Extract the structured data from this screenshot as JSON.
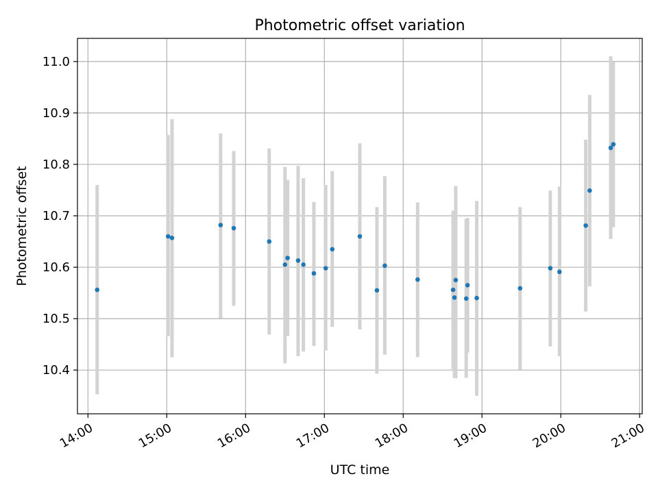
{
  "chart_data": {
    "type": "scatter",
    "title": "Photometric offset variation",
    "xlabel": "UTC time",
    "ylabel": "Photometric offset",
    "grid": true,
    "xlim": [
      "13:52",
      "21:02"
    ],
    "ylim": [
      10.315,
      11.045
    ],
    "x_ticks": [
      "14:00",
      "15:00",
      "16:00",
      "17:00",
      "18:00",
      "19:00",
      "20:00",
      "21:00"
    ],
    "y_ticks": [
      "10.4",
      "10.5",
      "10.6",
      "10.7",
      "10.8",
      "10.9",
      "11.0"
    ],
    "colors": {
      "point": "#1f77b4",
      "errorbar": "#d3d3d3",
      "grid": "#b0b0b0"
    },
    "points": [
      {
        "t": "14:07",
        "y": 10.556,
        "lo": 10.353,
        "hi": 10.76
      },
      {
        "t": "15:01",
        "y": 10.66,
        "lo": 10.466,
        "hi": 10.857
      },
      {
        "t": "15:04",
        "y": 10.657,
        "lo": 10.425,
        "hi": 10.888
      },
      {
        "t": "15:41",
        "y": 10.682,
        "lo": 10.501,
        "hi": 10.86
      },
      {
        "t": "15:51",
        "y": 10.676,
        "lo": 10.525,
        "hi": 10.826
      },
      {
        "t": "16:18",
        "y": 10.65,
        "lo": 10.469,
        "hi": 10.831
      },
      {
        "t": "16:30",
        "y": 10.605,
        "lo": 10.413,
        "hi": 10.795
      },
      {
        "t": "16:32",
        "y": 10.618,
        "lo": 10.466,
        "hi": 10.77
      },
      {
        "t": "16:40",
        "y": 10.613,
        "lo": 10.427,
        "hi": 10.797
      },
      {
        "t": "16:44",
        "y": 10.605,
        "lo": 10.436,
        "hi": 10.773
      },
      {
        "t": "16:52",
        "y": 10.588,
        "lo": 10.447,
        "hi": 10.727
      },
      {
        "t": "17:01",
        "y": 10.598,
        "lo": 10.438,
        "hi": 10.76
      },
      {
        "t": "17:06",
        "y": 10.635,
        "lo": 10.484,
        "hi": 10.787
      },
      {
        "t": "17:27",
        "y": 10.66,
        "lo": 10.479,
        "hi": 10.841
      },
      {
        "t": "17:40",
        "y": 10.555,
        "lo": 10.393,
        "hi": 10.717
      },
      {
        "t": "17:46",
        "y": 10.603,
        "lo": 10.43,
        "hi": 10.777
      },
      {
        "t": "18:11",
        "y": 10.576,
        "lo": 10.425,
        "hi": 10.726
      },
      {
        "t": "18:38",
        "y": 10.556,
        "lo": 10.402,
        "hi": 10.71
      },
      {
        "t": "18:39",
        "y": 10.541,
        "lo": 10.385,
        "hi": 10.698
      },
      {
        "t": "18:40",
        "y": 10.575,
        "lo": 10.384,
        "hi": 10.758
      },
      {
        "t": "18:48",
        "y": 10.539,
        "lo": 10.385,
        "hi": 10.694
      },
      {
        "t": "18:49",
        "y": 10.565,
        "lo": 10.434,
        "hi": 10.696
      },
      {
        "t": "18:56",
        "y": 10.54,
        "lo": 10.35,
        "hi": 10.729
      },
      {
        "t": "19:29",
        "y": 10.559,
        "lo": 10.401,
        "hi": 10.717
      },
      {
        "t": "19:52",
        "y": 10.598,
        "lo": 10.446,
        "hi": 10.749
      },
      {
        "t": "19:59",
        "y": 10.591,
        "lo": 10.427,
        "hi": 10.757
      },
      {
        "t": "20:19",
        "y": 10.681,
        "lo": 10.514,
        "hi": 10.848
      },
      {
        "t": "20:22",
        "y": 10.749,
        "lo": 10.563,
        "hi": 10.935
      },
      {
        "t": "20:38",
        "y": 10.832,
        "lo": 10.655,
        "hi": 11.01
      },
      {
        "t": "20:40",
        "y": 10.839,
        "lo": 10.678,
        "hi": 10.999
      }
    ]
  }
}
